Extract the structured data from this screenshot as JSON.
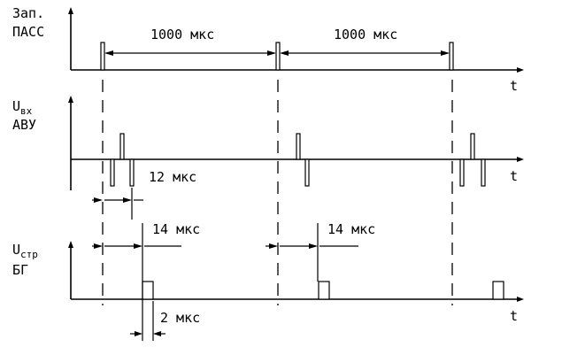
{
  "rows": {
    "pass": {
      "label_line1": "Зап.",
      "label_line2": "ПАСС",
      "axis_label": "t"
    },
    "input": {
      "label_main": "U",
      "label_sub": "вх",
      "label_line2": "АВУ",
      "axis_label": "t"
    },
    "strobe": {
      "label_main": "U",
      "label_sub": "стр",
      "label_line2": "БГ",
      "axis_label": "t"
    }
  },
  "annotations": {
    "period_1": "1000 мкс",
    "period_2": "1000 мкс",
    "delay_12": "12 мкс",
    "delay_14_a": "14 мкс",
    "delay_14_b": "14 мкс",
    "width_2": "2 мкс"
  }
}
